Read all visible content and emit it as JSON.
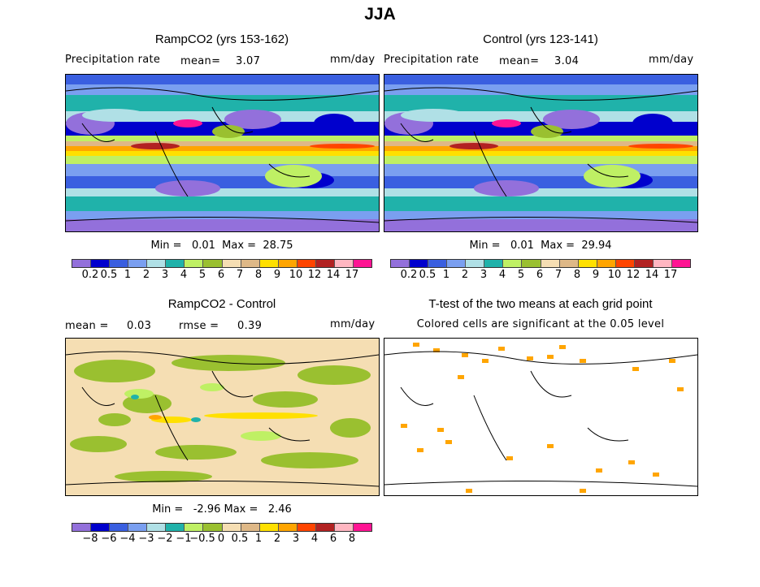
{
  "figure_title": "JJA",
  "panels": [
    {
      "title": "RampCO2 (yrs 153-162)",
      "variable": "Precipitation rate",
      "mean_label": "mean=",
      "mean": "3.07",
      "units": "mm/day",
      "min_label": "Min =",
      "min": "0.01",
      "max_label": "Max =",
      "max": "28.75"
    },
    {
      "title": "Control (yrs 123-141)",
      "variable": "Precipitation rate",
      "mean_label": "mean=",
      "mean": "3.04",
      "units": "mm/day",
      "min_label": "Min =",
      "min": "0.01",
      "max_label": "Max =",
      "max": "29.94"
    },
    {
      "title": "RampCO2 - Control",
      "mean_label": "mean =",
      "mean": "0.03",
      "rmse_label": "rmse =",
      "rmse": "0.39",
      "units": "mm/day",
      "min_label": "Min =",
      "min": "-2.96",
      "max_label": "Max =",
      "max": "2.46"
    },
    {
      "title": "T-test of the two means at each grid point",
      "subtitle": "Colored cells are significant at the 0.05 level",
      "significant_color": "#ffa500"
    }
  ],
  "chart_data": {
    "type": "heatmap",
    "colors": [
      "#9370db",
      "#0000cd",
      "#3a5fe0",
      "#7a9ff0",
      "#b0e0e6",
      "#20b2aa",
      "#bff064",
      "#9ac030",
      "#f5deb3",
      "#deb887",
      "#ffe000",
      "#ffa500",
      "#ff4500",
      "#b22222",
      "#ffb6c1",
      "#ff1493"
    ],
    "precip_levels": [
      "0.2",
      "0.5",
      "1",
      "2",
      "3",
      "4",
      "5",
      "6",
      "7",
      "8",
      "9",
      "10",
      "12",
      "14",
      "17"
    ],
    "diff_levels": [
      "−8",
      "−6",
      "−4",
      "−3",
      "−2",
      "−1",
      "−0.5",
      "0",
      "0.5",
      "1",
      "2",
      "3",
      "4",
      "6",
      "8"
    ]
  }
}
